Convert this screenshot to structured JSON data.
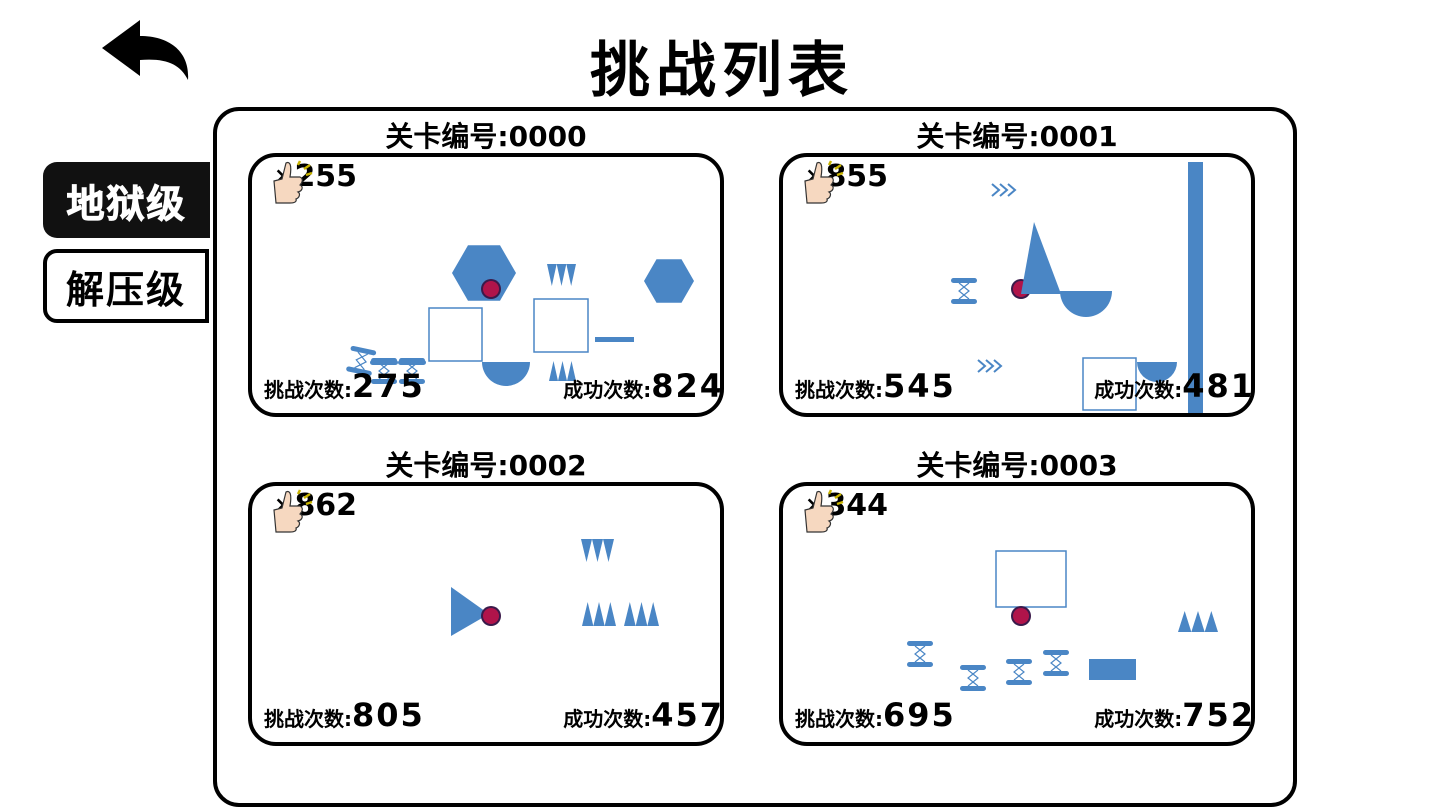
{
  "title": "挑战列表",
  "back_icon": "back-arrow-icon",
  "tabs": [
    {
      "label": "地狱级",
      "selected": true
    },
    {
      "label": "解压级",
      "selected": false
    }
  ],
  "colors": {
    "shape": "#4a86c5",
    "ball": "#b0144a",
    "border": "#000000"
  },
  "labels": {
    "attempts": "挑战次数:",
    "success": "成功次数:",
    "times": "×"
  },
  "levels": [
    {
      "title": "关卡编号:0000",
      "likes": "255",
      "attempts": "275",
      "success": "824"
    },
    {
      "title": "关卡编号:0001",
      "likes": "855",
      "attempts": "545",
      "success": "481"
    },
    {
      "title": "关卡编号:0002",
      "likes": "862",
      "attempts": "805",
      "success": "457"
    },
    {
      "title": "关卡编号:0003",
      "likes": "344",
      "attempts": "695",
      "success": "752"
    }
  ]
}
